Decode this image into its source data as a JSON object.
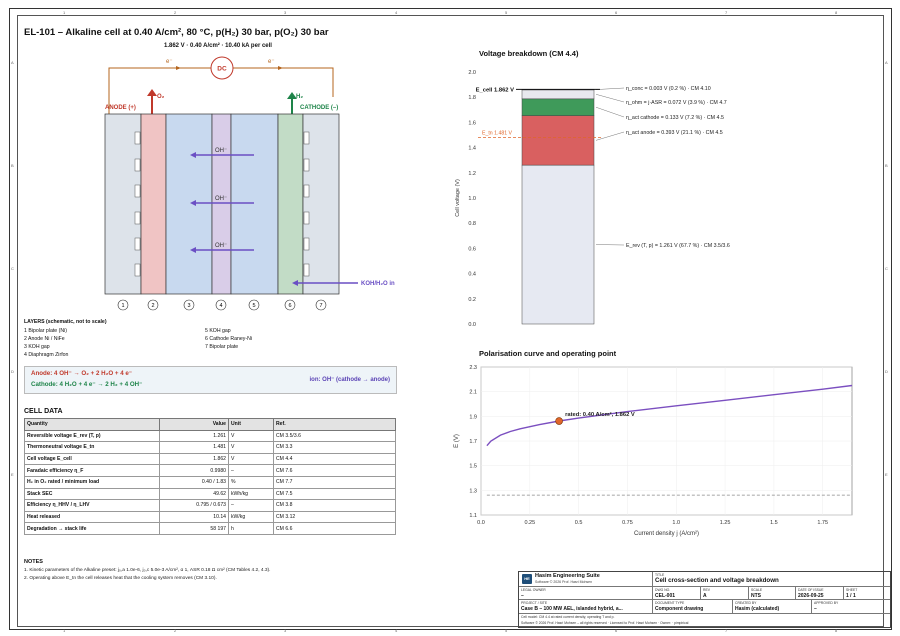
{
  "frame": {
    "zones_h": [
      "1",
      "2",
      "3",
      "4",
      "5",
      "6",
      "7",
      "8"
    ],
    "zones_v": [
      "A",
      "B",
      "C",
      "D",
      "E"
    ]
  },
  "header": {
    "title": "EL-101 – Alkaline cell at 0.40 A/cm², 80 °C, p(H₂) 30 bar, p(O₂) 30 bar",
    "subtitle": "1.862 V · 0.40 A/cm² · 10.40 kA per cell"
  },
  "schematic": {
    "dc_label": "DC",
    "e_left": "e⁻",
    "e_right": "e⁻",
    "o2_label": "O₂",
    "h2_label": "H₂",
    "anode_label": "ANODE (+)",
    "cathode_label": "CATHODE (–)",
    "oh_label": "OH⁻",
    "koh_label": "KOH/H₂O in",
    "layer_numbers": [
      "1",
      "2",
      "3",
      "4",
      "5",
      "6",
      "7"
    ],
    "colors": {
      "bipolar": "#dde3ea",
      "anode": "#f0c4c4",
      "koh": "#c8d9ef",
      "diaphragm": "#d9cde8",
      "cathode": "#c2dcc6",
      "wire": "#b5651d",
      "o2": "#c0392b",
      "h2": "#1e8449",
      "ion": "#6a4fc4"
    }
  },
  "layers": {
    "title": "LAYERS (schematic, not to scale)",
    "left": [
      "1 Bipolar plate (Ni)",
      "2 Anode Ni / NiFe",
      "3 KOH gap",
      "4 Diaphragm Zirfon"
    ],
    "right": [
      "5 KOH gap",
      "6 Cathode Raney-Ni",
      "7 Bipolar plate"
    ]
  },
  "reactions": {
    "anode": "Anode: 4 OH⁻ → O₂ + 2 H₂O + 4 e⁻",
    "cathode": "Cathode: 4 H₂O + 4 e⁻ → 2 H₂ + 4 OH⁻",
    "ion": "ion: OH⁻ (cathode → anode)"
  },
  "cell_data": {
    "title": "CELL DATA",
    "headers": [
      "Quantity",
      "Value",
      "Unit",
      "Ref."
    ],
    "rows": [
      {
        "q": "Reversible voltage E_rev (T, p)",
        "v": "1.261",
        "u": "V",
        "r": "CM 3.5/3.6"
      },
      {
        "q": "Thermoneutral voltage E_tn",
        "v": "1.481",
        "u": "V",
        "r": "CM 3.3"
      },
      {
        "q": "Cell voltage E_cell",
        "v": "1.862",
        "u": "V",
        "r": "CM 4.4"
      },
      {
        "q": "Faradaic efficiency η_F",
        "v": "0.9980",
        "u": "–",
        "r": "CM 7.6"
      },
      {
        "q": "H₂ in O₂ rated / minimum load",
        "v": "0.40 / 1.83",
        "u": "%",
        "r": "CM 7.7"
      },
      {
        "q": "Stack SEC",
        "v": "49.62",
        "u": "kWh/kg",
        "r": "CM 7.5"
      },
      {
        "q": "Efficiency η_HHV / η_LHV",
        "v": "0.795 / 0.673",
        "u": "–",
        "r": "CM 3.8"
      },
      {
        "q": "Heat released",
        "v": "10.14",
        "u": "kW/kg",
        "r": "CM 3.12"
      },
      {
        "q": "Degradation → stack life",
        "v": "58 197",
        "u": "h",
        "r": "CM 6.6"
      }
    ]
  },
  "notes": {
    "title": "NOTES",
    "items": [
      "1. Kinetic parameters of the Alkaline preset: j₀,a 1.0e-6, j₀,c 5.0e-3 A/cm², α 1, ASR 0.18 Ω cm² (CM Tables 4.2, 4.3).",
      "2. Operating above E_tn the cell releases heat that the cooling system removes (CM 3.10)."
    ]
  },
  "chart_data": [
    {
      "type": "bar",
      "title": "Voltage breakdown (CM 4.4)",
      "ylabel": "Cell voltage (V)",
      "ylim": [
        0,
        2.0
      ],
      "yticks": [
        "0.0",
        "0.2",
        "0.4",
        "0.6",
        "0.8",
        "1.0",
        "1.2",
        "1.4",
        "1.6",
        "1.8",
        "2.0"
      ],
      "stack": [
        {
          "name": "E_rev",
          "value": 1.261,
          "color": "#e6e9f2",
          "label": "E_rev (T, p) = 1.261 V (67.7 %) · CM 3.5/3.6"
        },
        {
          "name": "η_act anode",
          "value": 0.393,
          "color": "#d96060",
          "label": "η_act anode = 0.393 V (21.1 %) · CM 4.5"
        },
        {
          "name": "η_act cathode",
          "value": 0.133,
          "color": "#3f9a5a",
          "label": "η_act cathode = 0.133 V (7.2 %) · CM 4.5"
        },
        {
          "name": "η_ohm",
          "value": 0.072,
          "color": "#e8e8ee",
          "label": "η_ohm = j·ASR = 0.072 V (3.9 %) · CM 4.7"
        },
        {
          "name": "η_conc",
          "value": 0.003,
          "color": "#8e6cd1",
          "label": "η_conc = 0.003 V (0.2 %) · CM 4.10"
        }
      ],
      "e_cell": 1.862,
      "e_cell_label": "E_cell 1.862 V",
      "e_tn": 1.481,
      "e_tn_label": "E_tn 1.481 V"
    },
    {
      "type": "line",
      "title": "Polarisation curve and operating point",
      "xlabel": "Current density j (A/cm²)",
      "ylabel": "E (V)",
      "xlim": [
        0,
        1.9
      ],
      "ylim": [
        1.1,
        2.3
      ],
      "xticks": [
        "0.0",
        "0.25",
        "0.5",
        "0.75",
        "1.0",
        "1.25",
        "1.5",
        "1.75"
      ],
      "yticks": [
        "1.1",
        "1.3",
        "1.5",
        "1.7",
        "1.9",
        "2.1",
        "2.3"
      ],
      "x": [
        0.03,
        0.05,
        0.1,
        0.15,
        0.2,
        0.3,
        0.4,
        0.5,
        0.75,
        1.0,
        1.25,
        1.5,
        1.75,
        1.9
      ],
      "y": [
        1.662,
        1.698,
        1.748,
        1.777,
        1.799,
        1.833,
        1.862,
        1.886,
        1.938,
        1.985,
        2.03,
        2.075,
        2.12,
        2.15
      ],
      "reference": 1.261,
      "operating_point": {
        "x": 0.4,
        "y": 1.862,
        "label": "rated: 0.40 A/cm², 1.862 V"
      },
      "line_color": "#7b4fc0",
      "marker_color": "#e0662a"
    }
  ],
  "title_block": {
    "company": "Hasim Engineering Suite",
    "company_sub": "Software © 2026 Prof. Hasri Mohsen",
    "logo": "HE",
    "title_lbl": "TITLE",
    "title_val": "Cell cross-section and voltage breakdown",
    "owner_lbl": "LEGAL OWNER",
    "owner_val": "–",
    "dwg_lbl": "DWG NO.",
    "dwg_val": "CEL-001",
    "rev_lbl": "REV",
    "rev_val": "A",
    "scale_lbl": "SCALE",
    "scale_val": "NTS",
    "date_lbl": "DATE OF ISSUE",
    "date_val": "2026-09-25",
    "sheet_lbl": "SHEET",
    "sheet_val": "1 / 1",
    "project_lbl": "PROJECT / SITE",
    "project_val": "Case B – 100 MW AEL, islanded hybrid, a...",
    "doctype_lbl": "DOCUMENT TYPE",
    "doctype_val": "Component drawing",
    "created_lbl": "CREATED BY",
    "created_val": "Hasim (calculated)",
    "approved_lbl": "APPROVED BY",
    "approved_val": "–",
    "foot1": "Cell model: CM 4.4 at rated current density, operating T and p.",
    "foot2": "Software © 2026 Prof. Hasri Mohsen – all rights reserved · Licensed to Prof. Hasri Mohsen · Owner: · pimpirical"
  }
}
